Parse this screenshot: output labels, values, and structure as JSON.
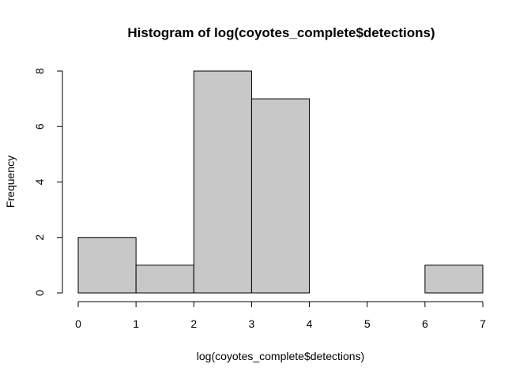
{
  "chart_data": {
    "type": "bar",
    "title": "Histogram of log(coyotes_complete$detections)",
    "xlabel": "log(coyotes_complete$detections)",
    "ylabel": "Frequency",
    "bins": [
      {
        "start": 0,
        "end": 1,
        "count": 2
      },
      {
        "start": 1,
        "end": 2,
        "count": 1
      },
      {
        "start": 2,
        "end": 3,
        "count": 8
      },
      {
        "start": 3,
        "end": 4,
        "count": 7
      },
      {
        "start": 4,
        "end": 5,
        "count": 0
      },
      {
        "start": 5,
        "end": 6,
        "count": 0
      },
      {
        "start": 6,
        "end": 7,
        "count": 1
      }
    ],
    "xlim": [
      0,
      7
    ],
    "ylim": [
      0,
      8
    ],
    "xticks": [
      "0",
      "1",
      "2",
      "3",
      "4",
      "5",
      "6",
      "7"
    ],
    "yticks": [
      "0",
      "2",
      "4",
      "6",
      "8"
    ],
    "grid": false,
    "bar_color": "#c8c8c8",
    "edge_color": "#000000"
  }
}
